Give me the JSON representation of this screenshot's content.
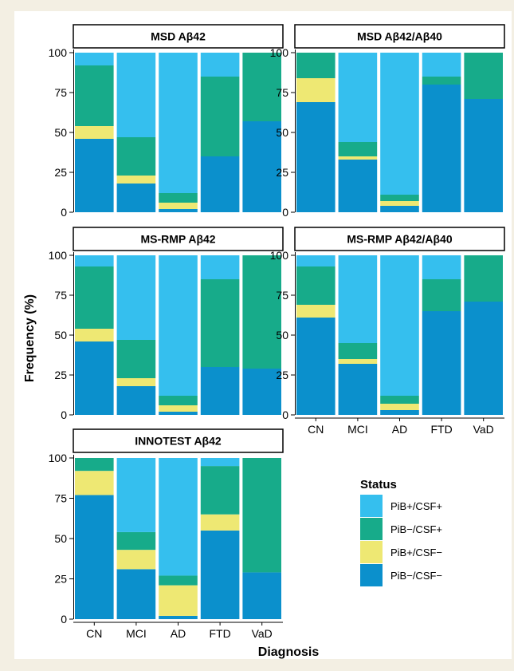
{
  "chart_data": {
    "type": "bar",
    "stacked": true,
    "xlabel": "Diagnosis",
    "ylabel": "Frequency (%)",
    "ylim": [
      0,
      100
    ],
    "yticks": [
      0,
      25,
      50,
      75,
      100
    ],
    "categories": [
      "CN",
      "MCI",
      "AD",
      "FTD",
      "VaD"
    ],
    "legend": {
      "title": "Status",
      "position": "right-bottom",
      "items": [
        {
          "label": "PiB+/CSF+",
          "color": "#35bfee"
        },
        {
          "label": "PiB−/CSF+",
          "color": "#17ab8a"
        },
        {
          "label": "PiB+/CSF−",
          "color": "#eee873"
        },
        {
          "label": "PiB−/CSF−",
          "color": "#0b90cc"
        }
      ]
    },
    "panels": [
      {
        "title": "MSD Aβ42",
        "series": [
          {
            "name": "PiB−/CSF−",
            "values": [
              46,
              18,
              2,
              35,
              57
            ]
          },
          {
            "name": "PiB+/CSF−",
            "values": [
              8,
              5,
              4,
              0,
              0
            ]
          },
          {
            "name": "PiB−/CSF+",
            "values": [
              38,
              24,
              6,
              50,
              43
            ]
          },
          {
            "name": "PiB+/CSF+",
            "values": [
              8,
              53,
              88,
              15,
              0
            ]
          }
        ]
      },
      {
        "title": "MSD Aβ42/Aβ40",
        "series": [
          {
            "name": "PiB−/CSF−",
            "values": [
              69,
              33,
              4,
              80,
              71
            ]
          },
          {
            "name": "PiB+/CSF−",
            "values": [
              15,
              2,
              3,
              0,
              0
            ]
          },
          {
            "name": "PiB−/CSF+",
            "values": [
              16,
              9,
              4,
              5,
              29
            ]
          },
          {
            "name": "PiB+/CSF+",
            "values": [
              0,
              56,
              89,
              15,
              0
            ]
          }
        ]
      },
      {
        "title": "MS-RMP Aβ42",
        "series": [
          {
            "name": "PiB−/CSF−",
            "values": [
              46,
              18,
              2,
              30,
              29
            ]
          },
          {
            "name": "PiB+/CSF−",
            "values": [
              8,
              5,
              4,
              0,
              0
            ]
          },
          {
            "name": "PiB−/CSF+",
            "values": [
              39,
              24,
              6,
              55,
              71
            ]
          },
          {
            "name": "PiB+/CSF+",
            "values": [
              7,
              53,
              88,
              15,
              0
            ]
          }
        ]
      },
      {
        "title": "MS-RMP Aβ42/Aβ40",
        "series": [
          {
            "name": "PiB−/CSF−",
            "values": [
              61,
              32,
              3,
              65,
              71
            ]
          },
          {
            "name": "PiB+/CSF−",
            "values": [
              8,
              3,
              4,
              0,
              0
            ]
          },
          {
            "name": "PiB−/CSF+",
            "values": [
              24,
              10,
              5,
              20,
              29
            ]
          },
          {
            "name": "PiB+/CSF+",
            "values": [
              7,
              55,
              88,
              15,
              0
            ]
          }
        ]
      },
      {
        "title": "INNOTEST Aβ42",
        "series": [
          {
            "name": "PiB−/CSF−",
            "values": [
              77,
              31,
              2,
              55,
              29
            ]
          },
          {
            "name": "PiB+/CSF−",
            "values": [
              15,
              12,
              19,
              10,
              0
            ]
          },
          {
            "name": "PiB−/CSF+",
            "values": [
              8,
              11,
              6,
              30,
              71
            ]
          },
          {
            "name": "PiB+/CSF+",
            "values": [
              0,
              46,
              73,
              5,
              0
            ]
          }
        ]
      }
    ]
  }
}
